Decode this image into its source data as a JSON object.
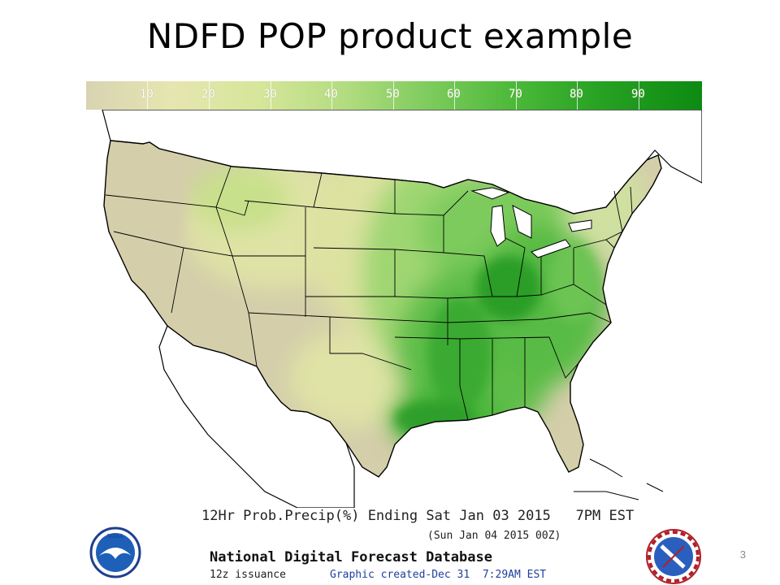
{
  "slide": {
    "title": "NDFD POP product example",
    "number": "3"
  },
  "legend": {
    "ticks": [
      "10",
      "20",
      "30",
      "40",
      "50",
      "60",
      "70",
      "80",
      "90"
    ],
    "colors": [
      "#d8d3b2",
      "#e6e6b0",
      "#d6e69a",
      "#b3dc80",
      "#7ccb5c",
      "#4ab838",
      "#26a122",
      "#0d8a12"
    ]
  },
  "map": {
    "caption_line1": "12Hr Prob.Precip(%) Ending Sat Jan 03 2015   7PM EST",
    "caption_line2": "(Sun Jan 04 2015 00Z)",
    "database_name": "National Digital Forecast Database",
    "issuance": "12z issuance",
    "created": "Graphic created-Dec 31  7:29AM EST",
    "region_colors": {
      "low": "#d4ceaa",
      "lowmid": "#dfe3a6",
      "mid": "#c7e08a",
      "midhigh": "#8fd066",
      "high": "#49b63a",
      "veryhigh": "#2a9e26",
      "water": "#ffffff",
      "border": "#000000"
    }
  },
  "logos": {
    "noaa_text": "NOAA",
    "nws_text": "NATIONAL WEATHER SERVICE"
  }
}
